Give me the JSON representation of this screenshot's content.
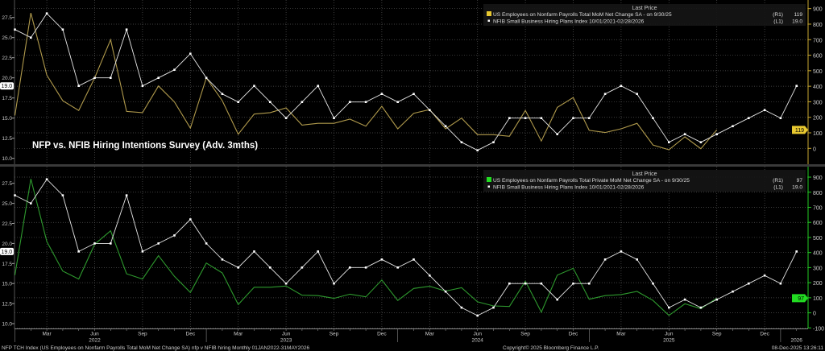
{
  "chart_title": "NFP vs. NFIB Hiring Intentions Survey (Adv. 3mths)",
  "colors": {
    "nfp": "#b09a4c",
    "nfp_key": "#e8c830",
    "private": "#2e9a2e",
    "private_key": "#22dd22",
    "nfib": "#e6e6e6",
    "top_axis": "#c8a830",
    "bottom_axis": "#22cc22"
  },
  "x_axis": {
    "months": [
      {
        "label": "Mar",
        "i": 2
      },
      {
        "label": "Jun",
        "i": 5
      },
      {
        "label": "Sep",
        "i": 8
      },
      {
        "label": "Dec",
        "i": 11
      },
      {
        "label": "Mar",
        "i": 14
      },
      {
        "label": "Jun",
        "i": 17
      },
      {
        "label": "Sep",
        "i": 20
      },
      {
        "label": "Dec",
        "i": 23
      },
      {
        "label": "Mar",
        "i": 26
      },
      {
        "label": "Jun",
        "i": 29
      },
      {
        "label": "Sep",
        "i": 32
      },
      {
        "label": "Dec",
        "i": 35
      },
      {
        "label": "Mar",
        "i": 38
      },
      {
        "label": "Jun",
        "i": 41
      },
      {
        "label": "Sep",
        "i": 44
      },
      {
        "label": "Dec",
        "i": 47
      }
    ],
    "years": [
      {
        "label": "2022",
        "i": 5
      },
      {
        "label": "2023",
        "i": 17
      },
      {
        "label": "2024",
        "i": 29
      },
      {
        "label": "2025",
        "i": 41
      },
      {
        "label": "2026",
        "i": 49
      }
    ],
    "start": "Jan 2022"
  },
  "footer": {
    "left": "NFP TCH Index (US Employees on Nonfarm Payrolls Total MoM Net Change SA) nfp v NFIB hiring Monthly 01JAN2022-31MAY2026",
    "center": "Copyright© 2025 Bloomberg Finance L.P.",
    "right": "08-Dec-2025 13:26:11"
  },
  "chart_data": [
    {
      "type": "line",
      "title": "NFP vs. NFIB Hiring Intentions Survey (Adv. 3mths)",
      "legend": {
        "header": "Last Price",
        "placement": "top-right",
        "entries": [
          {
            "name": "US Employees on Nonfarm Payrolls Total MoM Net Change SA -  on 9/30/25",
            "axis": "(R1)",
            "last": "119"
          },
          {
            "name": "NFIB Small Business Hiring Plans Index 10/01/2021-02/28/2026",
            "axis": "(L1)",
            "last": "19.0"
          }
        ]
      },
      "left_axis": {
        "ticks": [
          "10.0",
          "12.5",
          "15.0",
          "17.5",
          "20.0",
          "22.5",
          "25.0",
          "27.5"
        ],
        "range": [
          10,
          27.5
        ],
        "last_label": "19.0"
      },
      "right_axis": {
        "ticks": [
          "0",
          "100",
          "200",
          "300",
          "400",
          "500",
          "600",
          "700",
          "800",
          "900"
        ],
        "range": [
          0,
          900
        ],
        "last_label": "119"
      },
      "grid": true,
      "series": [
        {
          "name": "NFP total MoM",
          "axis": "right",
          "values": [
            212,
            872,
            472,
            307,
            244,
            454,
            700,
            238,
            230,
            402,
            299,
            130,
            454,
            307,
            91,
            221,
            230,
            261,
            150,
            161,
            161,
            188,
            143,
            271,
            126,
            226,
            250,
            126,
            195,
            88,
            88,
            78,
            244,
            47,
            264,
            327,
            116,
            102,
            126,
            161,
            22,
            -9,
            74,
            -2,
            119
          ]
        },
        {
          "name": "NFIB hiring plans (adv. 3m)",
          "axis": "left",
          "values": [
            26,
            25,
            28,
            26,
            19,
            20,
            20,
            26,
            19,
            20,
            21,
            23,
            20,
            18,
            17,
            19,
            17,
            15,
            17,
            19,
            15,
            17,
            17,
            18,
            17,
            18,
            16,
            14,
            12,
            11,
            12,
            15,
            15,
            15,
            13,
            15,
            15,
            18,
            19,
            18,
            15,
            12,
            13,
            12,
            13,
            14,
            15,
            16,
            15,
            19
          ]
        }
      ]
    },
    {
      "type": "line",
      "legend": {
        "header": "Last Price",
        "placement": "top-right",
        "entries": [
          {
            "name": "US Employees on Nonfarm Payrolls Total Private MoM Net Change SA -  on 9/30/25",
            "axis": "(R1)",
            "last": "97"
          },
          {
            "name": "NFIB Small Business Hiring Plans Index 10/01/2021-02/28/2026",
            "axis": "(L1)",
            "last": "19.0"
          }
        ]
      },
      "left_axis": {
        "ticks": [
          "10.0",
          "12.5",
          "15.0",
          "17.5",
          "20.0",
          "22.5",
          "25.0",
          "27.5"
        ],
        "range": [
          10,
          27.5
        ],
        "last_label": "19.0"
      },
      "right_axis": {
        "ticks": [
          "-100",
          "0",
          "100",
          "200",
          "300",
          "400",
          "500",
          "600",
          "700",
          "800",
          "900"
        ],
        "range": [
          -100,
          900
        ],
        "last_label": "97"
      },
      "grid": true,
      "series": [
        {
          "name": "NFP private MoM",
          "axis": "right",
          "values": [
            250,
            888,
            473,
            277,
            224,
            455,
            544,
            259,
            224,
            379,
            242,
            135,
            330,
            265,
            55,
            170,
            170,
            178,
            117,
            114,
            96,
            124,
            106,
            218,
            82,
            162,
            176,
            144,
            167,
            73,
            46,
            42,
            210,
            5,
            250,
            295,
            90,
            114,
            121,
            142,
            82,
            -17,
            60,
            28,
            97
          ]
        },
        {
          "name": "NFIB hiring plans (adv. 3m)",
          "axis": "left",
          "values": [
            26,
            25,
            28,
            26,
            19,
            20,
            20,
            26,
            19,
            20,
            21,
            23,
            20,
            18,
            17,
            19,
            17,
            15,
            17,
            19,
            15,
            17,
            17,
            18,
            17,
            18,
            16,
            14,
            12,
            11,
            12,
            15,
            15,
            15,
            13,
            15,
            15,
            18,
            19,
            18,
            15,
            12,
            13,
            12,
            13,
            14,
            15,
            16,
            15,
            19
          ]
        }
      ]
    }
  ]
}
